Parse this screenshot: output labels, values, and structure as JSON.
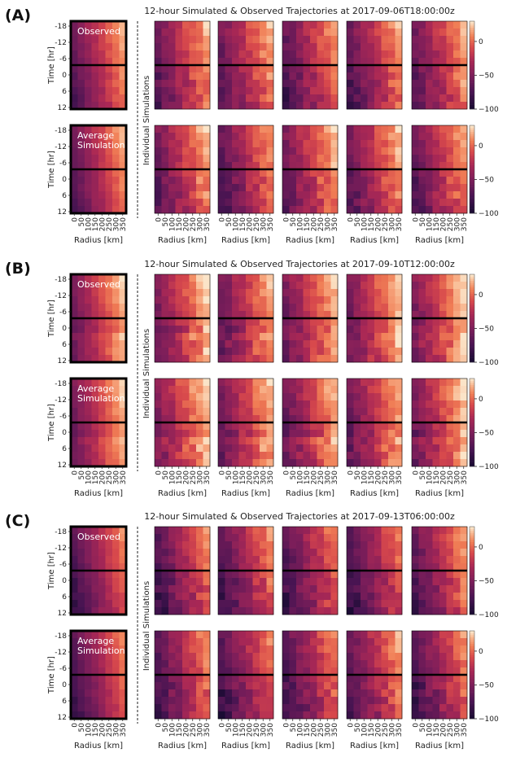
{
  "chart_data": [
    {
      "type": "heatmap",
      "panel_label": "(A)",
      "title": "12-hour Simulated & Observed Trajectories at 2017-09-06T18:00:00z",
      "left_labels": [
        "Observed",
        "Average\nSimulation"
      ],
      "side_label": "Individual Simulations",
      "xlabel": "Radius [km]",
      "ylabel": "Time [hr]",
      "x_ticks": [
        "0",
        "50",
        "100",
        "150",
        "200",
        "250",
        "300",
        "350"
      ],
      "y_ticks": [
        "-18",
        "-12",
        "-6",
        "0",
        "6",
        "12"
      ],
      "colorbar_ticks": [
        "0",
        "−50",
        "−100"
      ],
      "color_range": [
        -100,
        30
      ],
      "marker_time": 0,
      "n_individual": 10
    },
    {
      "type": "heatmap",
      "panel_label": "(B)",
      "title": "12-hour Simulated & Observed Trajectories at 2017-09-10T12:00:00z",
      "left_labels": [
        "Observed",
        "Average\nSimulation"
      ],
      "side_label": "Individual Simulations",
      "xlabel": "Radius [km]",
      "ylabel": "Time [hr]",
      "x_ticks": [
        "0",
        "50",
        "100",
        "150",
        "200",
        "250",
        "300",
        "350"
      ],
      "y_ticks": [
        "-18",
        "-12",
        "-6",
        "0",
        "6",
        "12"
      ],
      "colorbar_ticks": [
        "0",
        "−50",
        "−100"
      ],
      "color_range": [
        -100,
        30
      ],
      "marker_time": 0,
      "n_individual": 10
    },
    {
      "type": "heatmap",
      "panel_label": "(C)",
      "title": "12-hour Simulated & Observed Trajectories at 2017-09-13T06:00:00z",
      "left_labels": [
        "Observed",
        "Average\nSimulation"
      ],
      "side_label": "Individual Simulations",
      "xlabel": "Radius [km]",
      "ylabel": "Time [hr]",
      "x_ticks": [
        "0",
        "50",
        "100",
        "150",
        "200",
        "250",
        "300",
        "350"
      ],
      "y_ticks": [
        "-18",
        "-12",
        "-6",
        "0",
        "6",
        "12"
      ],
      "colorbar_ticks": [
        "0",
        "−50",
        "−100"
      ],
      "color_range": [
        -100,
        30
      ],
      "marker_time": 0,
      "n_individual": 10
    }
  ],
  "colors": {
    "low": "#1a0b33",
    "mid": "#a3295a",
    "high": "#fbe2c4",
    "marker": "#000000"
  }
}
